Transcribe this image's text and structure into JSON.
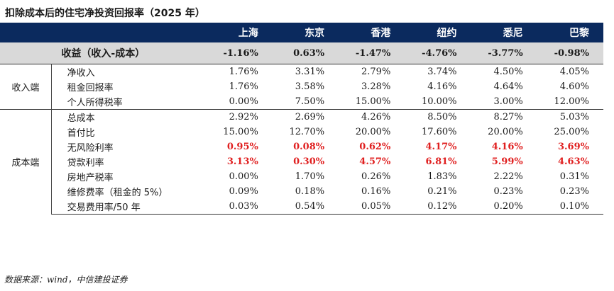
{
  "title": "扣除成本后的住宅净投资回报率（2025 年）",
  "source": "数据来源：wind，中信建投证券",
  "cities": [
    "上海",
    "东京",
    "香港",
    "纽约",
    "悉尼",
    "巴黎"
  ],
  "summary": {
    "label": "收益（收入-成本）",
    "values": [
      "-1.16%",
      "0.63%",
      "-1.47%",
      "-4.76%",
      "-3.77%",
      "-0.98%"
    ]
  },
  "groups": [
    {
      "name": "收入端",
      "rows": [
        {
          "label": "净收入",
          "values": [
            "1.76%",
            "3.31%",
            "2.79%",
            "3.74%",
            "4.50%",
            "4.05%"
          ],
          "highlight": false
        },
        {
          "label": "租金回报率",
          "values": [
            "1.76%",
            "3.58%",
            "3.28%",
            "4.16%",
            "4.64%",
            "4.60%"
          ],
          "highlight": false
        },
        {
          "label": "个人所得税率",
          "values": [
            "0.00%",
            "7.50%",
            "15.00%",
            "10.00%",
            "3.00%",
            "12.00%"
          ],
          "highlight": false
        }
      ]
    },
    {
      "name": "成本端",
      "rows": [
        {
          "label": "总成本",
          "values": [
            "2.92%",
            "2.69%",
            "4.26%",
            "8.50%",
            "8.27%",
            "5.03%"
          ],
          "highlight": false
        },
        {
          "label": "首付比",
          "values": [
            "15.00%",
            "12.70%",
            "20.00%",
            "17.60%",
            "20.00%",
            "25.00%"
          ],
          "highlight": false
        },
        {
          "label": "无风险利率",
          "values": [
            "0.95%",
            "0.08%",
            "0.62%",
            "4.17%",
            "4.16%",
            "3.69%"
          ],
          "highlight": true
        },
        {
          "label": "贷款利率",
          "values": [
            "3.13%",
            "0.30%",
            "4.57%",
            "6.81%",
            "5.99%",
            "4.63%"
          ],
          "highlight": true
        },
        {
          "label": "房地产税率",
          "values": [
            "0.00%",
            "1.70%",
            "0.26%",
            "1.83%",
            "2.22%",
            "0.31%"
          ],
          "highlight": false
        },
        {
          "label": "维修费率（租金的 5%）",
          "values": [
            "0.09%",
            "0.18%",
            "0.16%",
            "0.21%",
            "0.23%",
            "0.23%"
          ],
          "highlight": false
        },
        {
          "label": "交易费用率/50 年",
          "values": [
            "0.03%",
            "0.54%",
            "0.05%",
            "0.12%",
            "0.20%",
            "0.10%"
          ],
          "highlight": false
        }
      ]
    }
  ],
  "colors": {
    "header_bg": "#0b2a5e",
    "summary_bg": "#d9d9d9",
    "highlight": "#e02020"
  }
}
